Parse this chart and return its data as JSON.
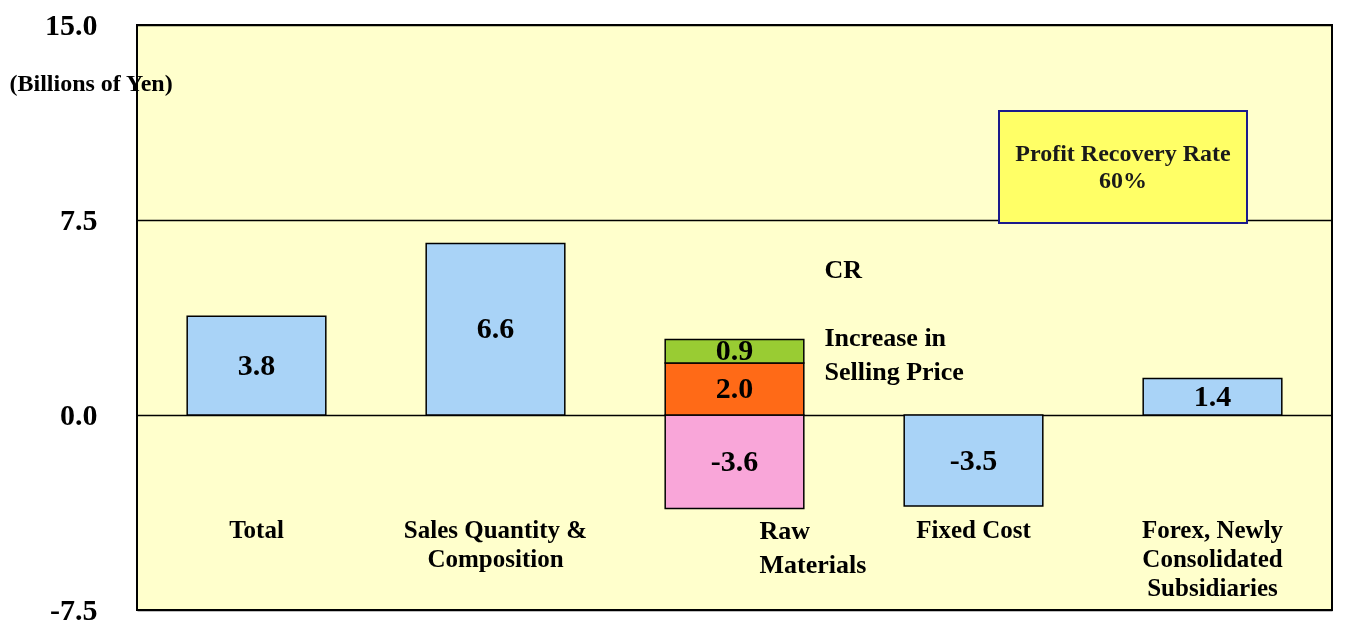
{
  "chart_data": {
    "type": "bar",
    "stacked": true,
    "categories": [
      "Total",
      "Sales Quantity & Composition",
      null,
      "Fixed Cost",
      "Forex, Newly Consolidated Subsidiaries"
    ],
    "series": [
      {
        "color": "#a9d3f7",
        "values": [
          3.8,
          6.6,
          null,
          -3.5,
          1.4
        ],
        "value_labels": [
          "3.8",
          "6.6",
          null,
          "-3.5",
          "1.4"
        ]
      },
      {
        "name": "Raw Materials",
        "color": "#f9a6d9",
        "values": [
          null,
          null,
          -3.6,
          null,
          null
        ],
        "value_labels": [
          null,
          null,
          "-3.6",
          null,
          null
        ]
      },
      {
        "name": "Increase in Selling Price",
        "color": "#ff6a17",
        "values": [
          null,
          null,
          2.0,
          null,
          null
        ],
        "value_labels": [
          null,
          null,
          "2.0",
          null,
          null
        ]
      },
      {
        "name": "CR",
        "color": "#99cc33",
        "values": [
          null,
          null,
          0.9,
          null,
          null
        ],
        "value_labels": [
          null,
          null,
          "0.9",
          null,
          null
        ]
      }
    ],
    "ylabel": "(Billions of Yen)",
    "ylim": [
      -7.5,
      15
    ],
    "yticks": [
      {
        "value": -7.5,
        "label": "-7.5"
      },
      {
        "value": 0,
        "label": "0.0"
      },
      {
        "value": 7.5,
        "label": "7.5"
      },
      {
        "value": 15,
        "label": "15.0"
      }
    ],
    "grid": "y",
    "legend": false,
    "data_labels": true,
    "annotations": [
      "Profit Recovery Rate 60%"
    ]
  }
}
